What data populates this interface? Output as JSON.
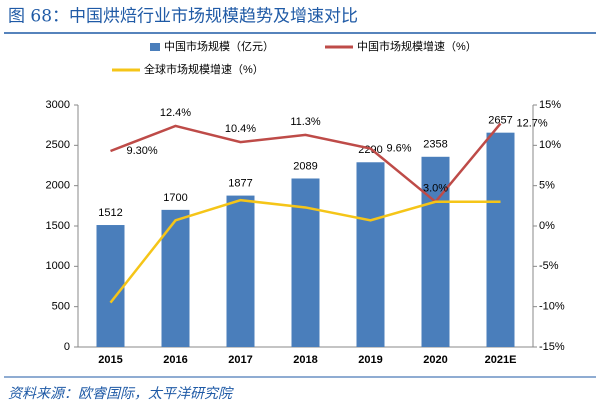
{
  "chart_data": {
    "type": "bar",
    "title": "图 68：中国烘焙行业市场规模趋势及增速对比",
    "source": "资料来源：欧睿国际，太平洋研究院",
    "categories": [
      "2015",
      "2016",
      "2017",
      "2018",
      "2019",
      "2020",
      "2021E"
    ],
    "series": [
      {
        "name": "中国市场规模（亿元）",
        "type": "bar",
        "color": "#4a7ebb",
        "values": [
          1512,
          1700,
          1877,
          2089,
          2290,
          2358,
          2657
        ]
      },
      {
        "name": "中国市场规模增速（%）",
        "type": "line",
        "axis": "y2",
        "color": "#be4b48",
        "values": [
          9.3,
          12.4,
          10.4,
          11.3,
          9.6,
          3.0,
          12.7
        ],
        "value_labels": [
          "9.30%",
          "12.4%",
          "10.4%",
          "11.3%",
          "9.6%",
          "3.0%",
          "12.7%"
        ]
      },
      {
        "name": "全球市场规模增速（%）",
        "type": "line",
        "axis": "y2",
        "color": "#f5c518",
        "values": [
          -9.5,
          0.7,
          3.2,
          2.3,
          0.7,
          3.0,
          3.0
        ]
      }
    ],
    "ylim": [
      0,
      3000
    ],
    "yticks": [
      0,
      500,
      1000,
      1500,
      2000,
      2500,
      3000
    ],
    "y2lim": [
      -15,
      15
    ],
    "y2ticks": [
      {
        "value": -15,
        "label": "-15%"
      },
      {
        "value": -10,
        "label": "-10%"
      },
      {
        "value": -5,
        "label": "-5%"
      },
      {
        "value": 0,
        "label": "0%"
      },
      {
        "value": 5,
        "label": "5%"
      },
      {
        "value": 10,
        "label": "10%"
      },
      {
        "value": 15,
        "label": "15%"
      }
    ],
    "grid": false
  }
}
